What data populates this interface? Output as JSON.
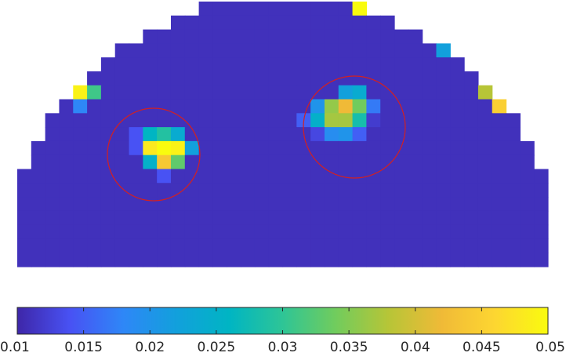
{
  "chart_data": {
    "type": "heatmap",
    "colormap": "parula",
    "clim": [
      0.01,
      0.05
    ],
    "z": [
      [
        null,
        null,
        null,
        null,
        null,
        null,
        null,
        null,
        null,
        null,
        null,
        null,
        null,
        0.011,
        0.011,
        0.011,
        0.011,
        0.011,
        0.011,
        0.011,
        0.011,
        0.011,
        0.011,
        0.011,
        0.05,
        null,
        null,
        null,
        null,
        null,
        null,
        null,
        null,
        null,
        null,
        null,
        null,
        null
      ],
      [
        null,
        null,
        null,
        null,
        null,
        null,
        null,
        null,
        null,
        null,
        null,
        0.011,
        0.011,
        0.011,
        0.011,
        0.011,
        0.011,
        0.011,
        0.011,
        0.011,
        0.011,
        0.011,
        0.011,
        0.011,
        0.011,
        0.011,
        0.011,
        null,
        null,
        null,
        null,
        null,
        null,
        null,
        null,
        null,
        null,
        null
      ],
      [
        null,
        null,
        null,
        null,
        null,
        null,
        null,
        null,
        null,
        0.011,
        0.011,
        0.011,
        0.011,
        0.011,
        0.011,
        0.011,
        0.011,
        0.011,
        0.011,
        0.011,
        0.011,
        0.011,
        0.011,
        0.011,
        0.011,
        0.011,
        0.011,
        0.011,
        0.011,
        null,
        null,
        null,
        null,
        null,
        null,
        null,
        null,
        null
      ],
      [
        null,
        null,
        null,
        null,
        null,
        null,
        null,
        0.011,
        0.011,
        0.011,
        0.011,
        0.011,
        0.011,
        0.011,
        0.011,
        0.011,
        0.011,
        0.011,
        0.011,
        0.011,
        0.011,
        0.011,
        0.011,
        0.011,
        0.011,
        0.011,
        0.011,
        0.011,
        0.011,
        0.011,
        0.022,
        null,
        null,
        null,
        null,
        null,
        null,
        null
      ],
      [
        null,
        null,
        null,
        null,
        null,
        null,
        0.011,
        0.011,
        0.011,
        0.011,
        0.011,
        0.011,
        0.011,
        0.011,
        0.011,
        0.011,
        0.011,
        0.011,
        0.011,
        0.011,
        0.011,
        0.011,
        0.011,
        0.011,
        0.011,
        0.011,
        0.011,
        0.011,
        0.011,
        0.011,
        0.011,
        0.011,
        null,
        null,
        null,
        null,
        null,
        null
      ],
      [
        null,
        null,
        null,
        null,
        null,
        0.011,
        0.011,
        0.011,
        0.011,
        0.011,
        0.011,
        0.011,
        0.011,
        0.011,
        0.011,
        0.011,
        0.011,
        0.011,
        0.011,
        0.011,
        0.011,
        0.011,
        0.011,
        0.011,
        0.011,
        0.011,
        0.011,
        0.011,
        0.011,
        0.011,
        0.011,
        0.011,
        0.011,
        null,
        null,
        null,
        null,
        null
      ],
      [
        null,
        null,
        null,
        null,
        0.049,
        0.031,
        0.011,
        0.011,
        0.011,
        0.011,
        0.011,
        0.011,
        0.011,
        0.011,
        0.011,
        0.011,
        0.011,
        0.011,
        0.011,
        0.011,
        0.011,
        0.011,
        0.011,
        0.022,
        0.024,
        0.011,
        0.011,
        0.011,
        0.011,
        0.011,
        0.011,
        0.011,
        0.011,
        0.038,
        null,
        null,
        null,
        null
      ],
      [
        null,
        null,
        null,
        0.011,
        0.018,
        0.011,
        0.011,
        0.011,
        0.011,
        0.011,
        0.011,
        0.011,
        0.011,
        0.011,
        0.011,
        0.011,
        0.011,
        0.011,
        0.011,
        0.011,
        0.011,
        0.02,
        0.036,
        0.042,
        0.034,
        0.017,
        0.011,
        0.011,
        0.011,
        0.011,
        0.011,
        0.011,
        0.011,
        0.011,
        0.045,
        null,
        null,
        null
      ],
      [
        null,
        null,
        0.011,
        0.011,
        0.011,
        0.011,
        0.011,
        0.011,
        0.011,
        0.011,
        0.011,
        0.011,
        0.011,
        0.011,
        0.011,
        0.011,
        0.011,
        0.011,
        0.011,
        0.011,
        0.015,
        0.025,
        0.037,
        0.037,
        0.028,
        0.012,
        0.011,
        0.011,
        0.011,
        0.011,
        0.011,
        0.011,
        0.011,
        0.011,
        0.011,
        0.011,
        null,
        null
      ],
      [
        null,
        null,
        0.011,
        0.011,
        0.011,
        0.011,
        0.011,
        0.011,
        0.014,
        0.026,
        0.029,
        0.024,
        0.011,
        0.011,
        0.011,
        0.011,
        0.011,
        0.011,
        0.011,
        0.011,
        0.011,
        0.013,
        0.019,
        0.02,
        0.015,
        0.011,
        0.011,
        0.011,
        0.011,
        0.011,
        0.011,
        0.011,
        0.011,
        0.011,
        0.011,
        0.011,
        null,
        null
      ],
      [
        null,
        0.011,
        0.011,
        0.011,
        0.011,
        0.011,
        0.011,
        0.011,
        0.014,
        0.048,
        0.05,
        0.049,
        0.022,
        0.011,
        0.011,
        0.011,
        0.011,
        0.011,
        0.011,
        0.011,
        0.011,
        0.011,
        0.011,
        0.011,
        0.011,
        0.011,
        0.011,
        0.011,
        0.011,
        0.011,
        0.011,
        0.011,
        0.011,
        0.011,
        0.011,
        0.011,
        0.011,
        null
      ],
      [
        null,
        0.011,
        0.011,
        0.011,
        0.011,
        0.011,
        0.011,
        0.011,
        0.011,
        0.025,
        0.044,
        0.033,
        0.011,
        0.011,
        0.011,
        0.011,
        0.011,
        0.011,
        0.011,
        0.011,
        0.011,
        0.011,
        0.011,
        0.011,
        0.011,
        0.011,
        0.011,
        0.011,
        0.011,
        0.011,
        0.011,
        0.011,
        0.011,
        0.011,
        0.011,
        0.011,
        0.011,
        null
      ],
      [
        0.011,
        0.011,
        0.011,
        0.011,
        0.011,
        0.011,
        0.011,
        0.011,
        0.011,
        0.011,
        0.014,
        0.011,
        0.011,
        0.011,
        0.011,
        0.011,
        0.011,
        0.011,
        0.011,
        0.011,
        0.011,
        0.011,
        0.011,
        0.011,
        0.011,
        0.011,
        0.011,
        0.011,
        0.011,
        0.011,
        0.011,
        0.011,
        0.011,
        0.011,
        0.011,
        0.011,
        0.011,
        0.011
      ],
      [
        0.011,
        0.011,
        0.011,
        0.011,
        0.011,
        0.011,
        0.011,
        0.011,
        0.011,
        0.011,
        0.011,
        0.011,
        0.011,
        0.011,
        0.011,
        0.011,
        0.011,
        0.011,
        0.011,
        0.011,
        0.011,
        0.011,
        0.011,
        0.011,
        0.011,
        0.011,
        0.011,
        0.011,
        0.011,
        0.011,
        0.011,
        0.011,
        0.011,
        0.011,
        0.011,
        0.011,
        0.011,
        0.011
      ],
      [
        0.011,
        0.011,
        0.011,
        0.011,
        0.011,
        0.011,
        0.011,
        0.011,
        0.011,
        0.011,
        0.011,
        0.011,
        0.011,
        0.011,
        0.011,
        0.011,
        0.011,
        0.011,
        0.011,
        0.011,
        0.011,
        0.011,
        0.011,
        0.011,
        0.011,
        0.011,
        0.011,
        0.011,
        0.011,
        0.011,
        0.011,
        0.011,
        0.011,
        0.011,
        0.011,
        0.011,
        0.011,
        0.011
      ],
      [
        0.011,
        0.011,
        0.011,
        0.011,
        0.011,
        0.011,
        0.011,
        0.011,
        0.011,
        0.011,
        0.011,
        0.011,
        0.011,
        0.011,
        0.011,
        0.011,
        0.011,
        0.011,
        0.011,
        0.011,
        0.011,
        0.011,
        0.011,
        0.011,
        0.011,
        0.011,
        0.011,
        0.011,
        0.011,
        0.011,
        0.011,
        0.011,
        0.011,
        0.011,
        0.011,
        0.011,
        0.011,
        0.011
      ],
      [
        0.011,
        0.011,
        0.011,
        0.011,
        0.011,
        0.011,
        0.011,
        0.011,
        0.011,
        0.011,
        0.011,
        0.011,
        0.011,
        0.011,
        0.011,
        0.011,
        0.011,
        0.011,
        0.011,
        0.011,
        0.011,
        0.011,
        0.011,
        0.011,
        0.011,
        0.011,
        0.011,
        0.011,
        0.011,
        0.011,
        0.011,
        0.011,
        0.011,
        0.011,
        0.011,
        0.011,
        0.011,
        0.011
      ],
      [
        0.011,
        0.011,
        0.011,
        0.011,
        0.011,
        0.011,
        0.011,
        0.011,
        0.011,
        0.011,
        0.011,
        0.011,
        0.011,
        0.011,
        0.011,
        0.011,
        0.011,
        0.011,
        0.011,
        0.011,
        0.011,
        0.011,
        0.011,
        0.011,
        0.011,
        0.011,
        0.011,
        0.011,
        0.011,
        0.011,
        0.011,
        0.011,
        0.011,
        0.011,
        0.011,
        0.011,
        0.011,
        0.011
      ],
      [
        0.011,
        0.011,
        0.011,
        0.011,
        0.011,
        0.011,
        0.011,
        0.011,
        0.011,
        0.011,
        0.011,
        0.011,
        0.011,
        0.011,
        0.011,
        0.011,
        0.011,
        0.011,
        0.011,
        0.011,
        0.011,
        0.011,
        0.011,
        0.011,
        0.011,
        0.011,
        0.011,
        0.011,
        0.011,
        0.011,
        0.011,
        0.011,
        0.011,
        0.011,
        0.011,
        0.011,
        0.011,
        0.011
      ]
    ],
    "colorbar_ticks": [
      0.01,
      0.015,
      0.02,
      0.025,
      0.03,
      0.035,
      0.04,
      0.045,
      0.05
    ]
  }
}
